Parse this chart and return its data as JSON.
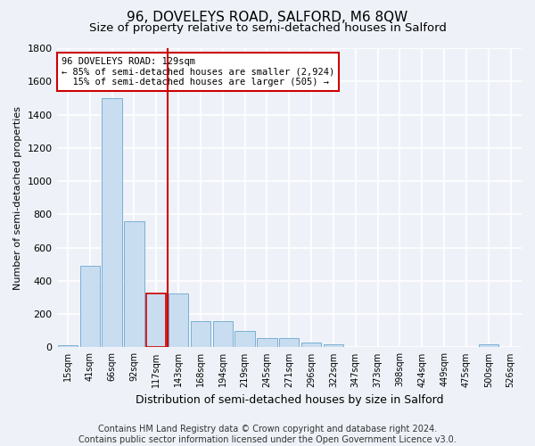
{
  "title": "96, DOVELEYS ROAD, SALFORD, M6 8QW",
  "subtitle": "Size of property relative to semi-detached houses in Salford",
  "xlabel": "Distribution of semi-detached houses by size in Salford",
  "ylabel": "Number of semi-detached properties",
  "categories": [
    "15sqm",
    "41sqm",
    "66sqm",
    "92sqm",
    "117sqm",
    "143sqm",
    "168sqm",
    "194sqm",
    "219sqm",
    "245sqm",
    "271sqm",
    "296sqm",
    "322sqm",
    "347sqm",
    "373sqm",
    "398sqm",
    "424sqm",
    "449sqm",
    "475sqm",
    "500sqm",
    "526sqm"
  ],
  "values": [
    15,
    490,
    1500,
    760,
    325,
    325,
    160,
    160,
    100,
    55,
    55,
    30,
    20,
    0,
    0,
    0,
    0,
    0,
    0,
    20,
    0
  ],
  "bar_color": "#c9ddf0",
  "bar_edge_color": "#7aafd4",
  "highlight_bar_index": 4,
  "highlight_edge_color": "#cc0000",
  "vline_color": "#cc0000",
  "vline_x_position": 4.5,
  "annotation_text": "96 DOVELEYS ROAD: 129sqm\n← 85% of semi-detached houses are smaller (2,924)\n  15% of semi-detached houses are larger (505) →",
  "annotation_box_facecolor": "#ffffff",
  "annotation_box_edgecolor": "#cc0000",
  "ylim": [
    0,
    1800
  ],
  "yticks": [
    0,
    200,
    400,
    600,
    800,
    1000,
    1200,
    1400,
    1600,
    1800
  ],
  "footer_text": "Contains HM Land Registry data © Crown copyright and database right 2024.\nContains public sector information licensed under the Open Government Licence v3.0.",
  "background_color": "#eef2f8",
  "plot_background_color": "#eef2f8",
  "grid_color": "#ffffff",
  "title_fontsize": 11,
  "subtitle_fontsize": 9.5,
  "ylabel_fontsize": 8,
  "xlabel_fontsize": 9,
  "tick_fontsize": 7,
  "footer_fontsize": 7
}
